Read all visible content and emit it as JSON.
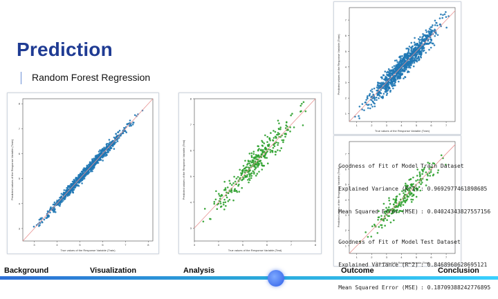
{
  "slide": {
    "title": "Prediction",
    "subtitle": "Random Forest Regression"
  },
  "fit_summary": {
    "train": {
      "header_left": "Goodness of Fit of Model",
      "header_right": "Train Dataset",
      "row1_label": "Explained Variance (R^2)",
      "row1_value": ": 0.9692977461898685",
      "row2_label": "Mean Squared Error (MSE)",
      "row2_value": ": 0.04024343827557156"
    },
    "test": {
      "header_left": "Goodness of Fit of Model",
      "header_right": "Test Dataset",
      "row1_label": "Explained Variance (R^2)",
      "row1_value": ": 0.8468960628695121",
      "row2_label": "Mean Squared Error (MSE)",
      "row2_value": ": 0.18709388242776895"
    }
  },
  "nav": {
    "items": [
      "Background",
      "Visualization",
      "Analysis",
      "Outcome",
      "Conclusion"
    ],
    "accent": "#2f5ee8"
  },
  "chart_data": [
    {
      "type": "scatter",
      "xlabel": "True values of the Response Variable (Train)",
      "ylabel": "Predicted values of the Response Variable (Train)",
      "xlim": [
        2.5,
        8.2
      ],
      "ylim": [
        2.5,
        8.2
      ],
      "x_ticks": [
        "3",
        "4",
        "5",
        "6",
        "7",
        "8"
      ],
      "y_ticks": [
        "3",
        "4",
        "5",
        "6",
        "7",
        "8"
      ],
      "color": "#1f77b4",
      "diag_color": "#e8908f",
      "noise": 0.22,
      "n_points": 900
    },
    {
      "type": "scatter",
      "xlabel": "True values of the Response Variable (Test)",
      "ylabel": "Predicted values of the Response Variable (Test)",
      "xlim": [
        3,
        8
      ],
      "ylim": [
        2.5,
        8
      ],
      "x_ticks": [
        "3",
        "4",
        "5",
        "6",
        "7",
        "8"
      ],
      "y_ticks": [
        "3",
        "4",
        "5",
        "6",
        "7",
        "8"
      ],
      "color": "#2ca02c",
      "diag_color": "#e8908f",
      "noise": 0.55,
      "n_points": 330
    },
    {
      "type": "scatter",
      "xlabel": "True values of the Response Variable (Train)",
      "ylabel": "Predicted values of the Response Variable (Train)",
      "xlim": [
        0.5,
        7.6
      ],
      "ylim": [
        0.5,
        7.8
      ],
      "x_ticks": [
        "1",
        "2",
        "3",
        "4",
        "5",
        "6",
        "7"
      ],
      "y_ticks": [
        "1",
        "2",
        "3",
        "4",
        "5",
        "6",
        "7"
      ],
      "color": "#1f77b4",
      "diag_color": "#e8908f",
      "noise": 0.75,
      "n_points": 900
    },
    {
      "type": "scatter",
      "xlabel": "True values of the Response Variable (Test)",
      "ylabel": "Predicted values of the Response Variable (Test)",
      "xlim": [
        0.5,
        7.6
      ],
      "ylim": [
        0.5,
        7.8
      ],
      "x_ticks": [
        "1",
        "2",
        "3",
        "4",
        "5",
        "6",
        "7"
      ],
      "y_ticks": [
        "1",
        "2",
        "3",
        "4",
        "5",
        "6",
        "7"
      ],
      "color": "#2ca02c",
      "diag_color": "#e8908f",
      "noise": 0.8,
      "n_points": 220
    }
  ]
}
